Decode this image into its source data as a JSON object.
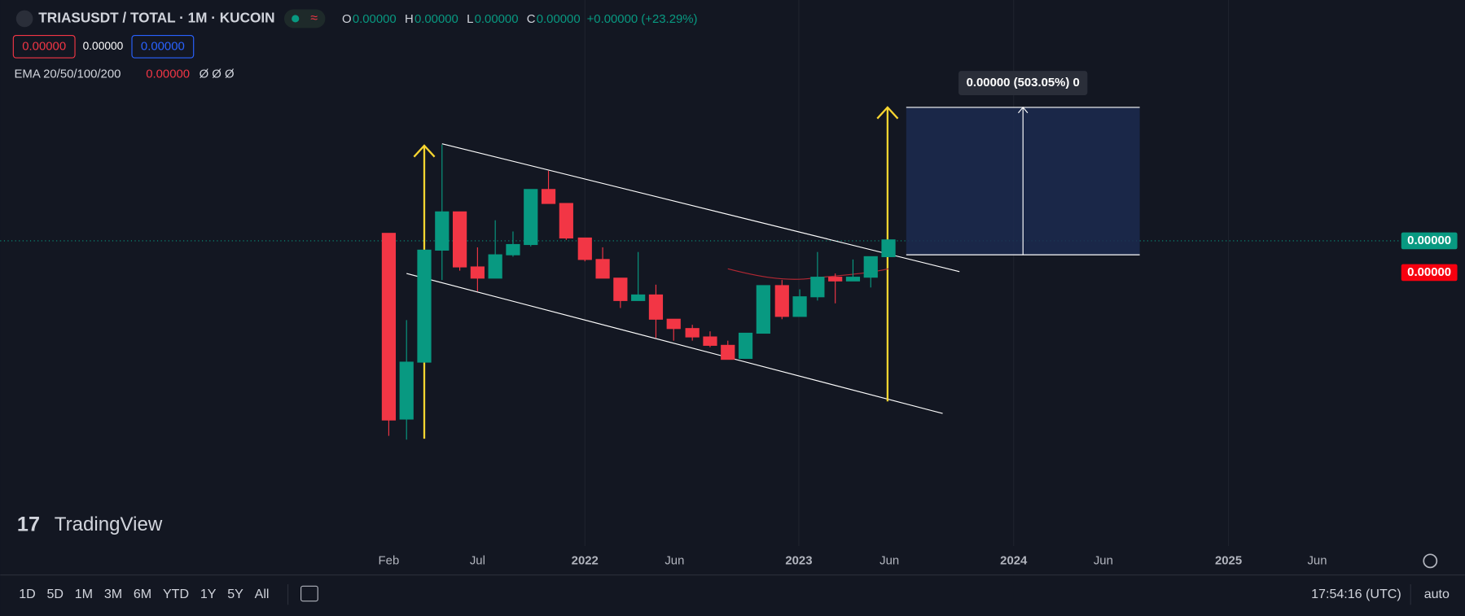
{
  "header": {
    "symbol": "TRIASUSDT / TOTAL · 1M · KUCOIN",
    "ohlc": [
      {
        "key": "O",
        "value": "0.00000"
      },
      {
        "key": "H",
        "value": "0.00000"
      },
      {
        "key": "L",
        "value": "0.00000"
      },
      {
        "key": "C",
        "value": "0.00000"
      }
    ],
    "change": "+0.00000 (+23.29%)",
    "badges": [
      "0.00000",
      "0.00000",
      "0.00000"
    ],
    "indicator": {
      "name": "EMA 20/50/100/200",
      "value": "0.00000",
      "rest": "Ø  Ø  Ø"
    }
  },
  "measure_label": "0.00000 (503.05%) 0",
  "price_labels": [
    "0.00000",
    "0.00000"
  ],
  "logo": "TradingView",
  "time_axis": [
    "Feb",
    "Jul",
    "2022",
    "Jun",
    "2023",
    "Jun",
    "2024",
    "Jun",
    "2025",
    "Jun"
  ],
  "toolbar": {
    "ranges": [
      "1D",
      "5D",
      "1M",
      "3M",
      "6M",
      "YTD",
      "1Y",
      "5Y",
      "All"
    ],
    "clock": "17:54:16 (UTC)",
    "scale": "auto"
  }
}
